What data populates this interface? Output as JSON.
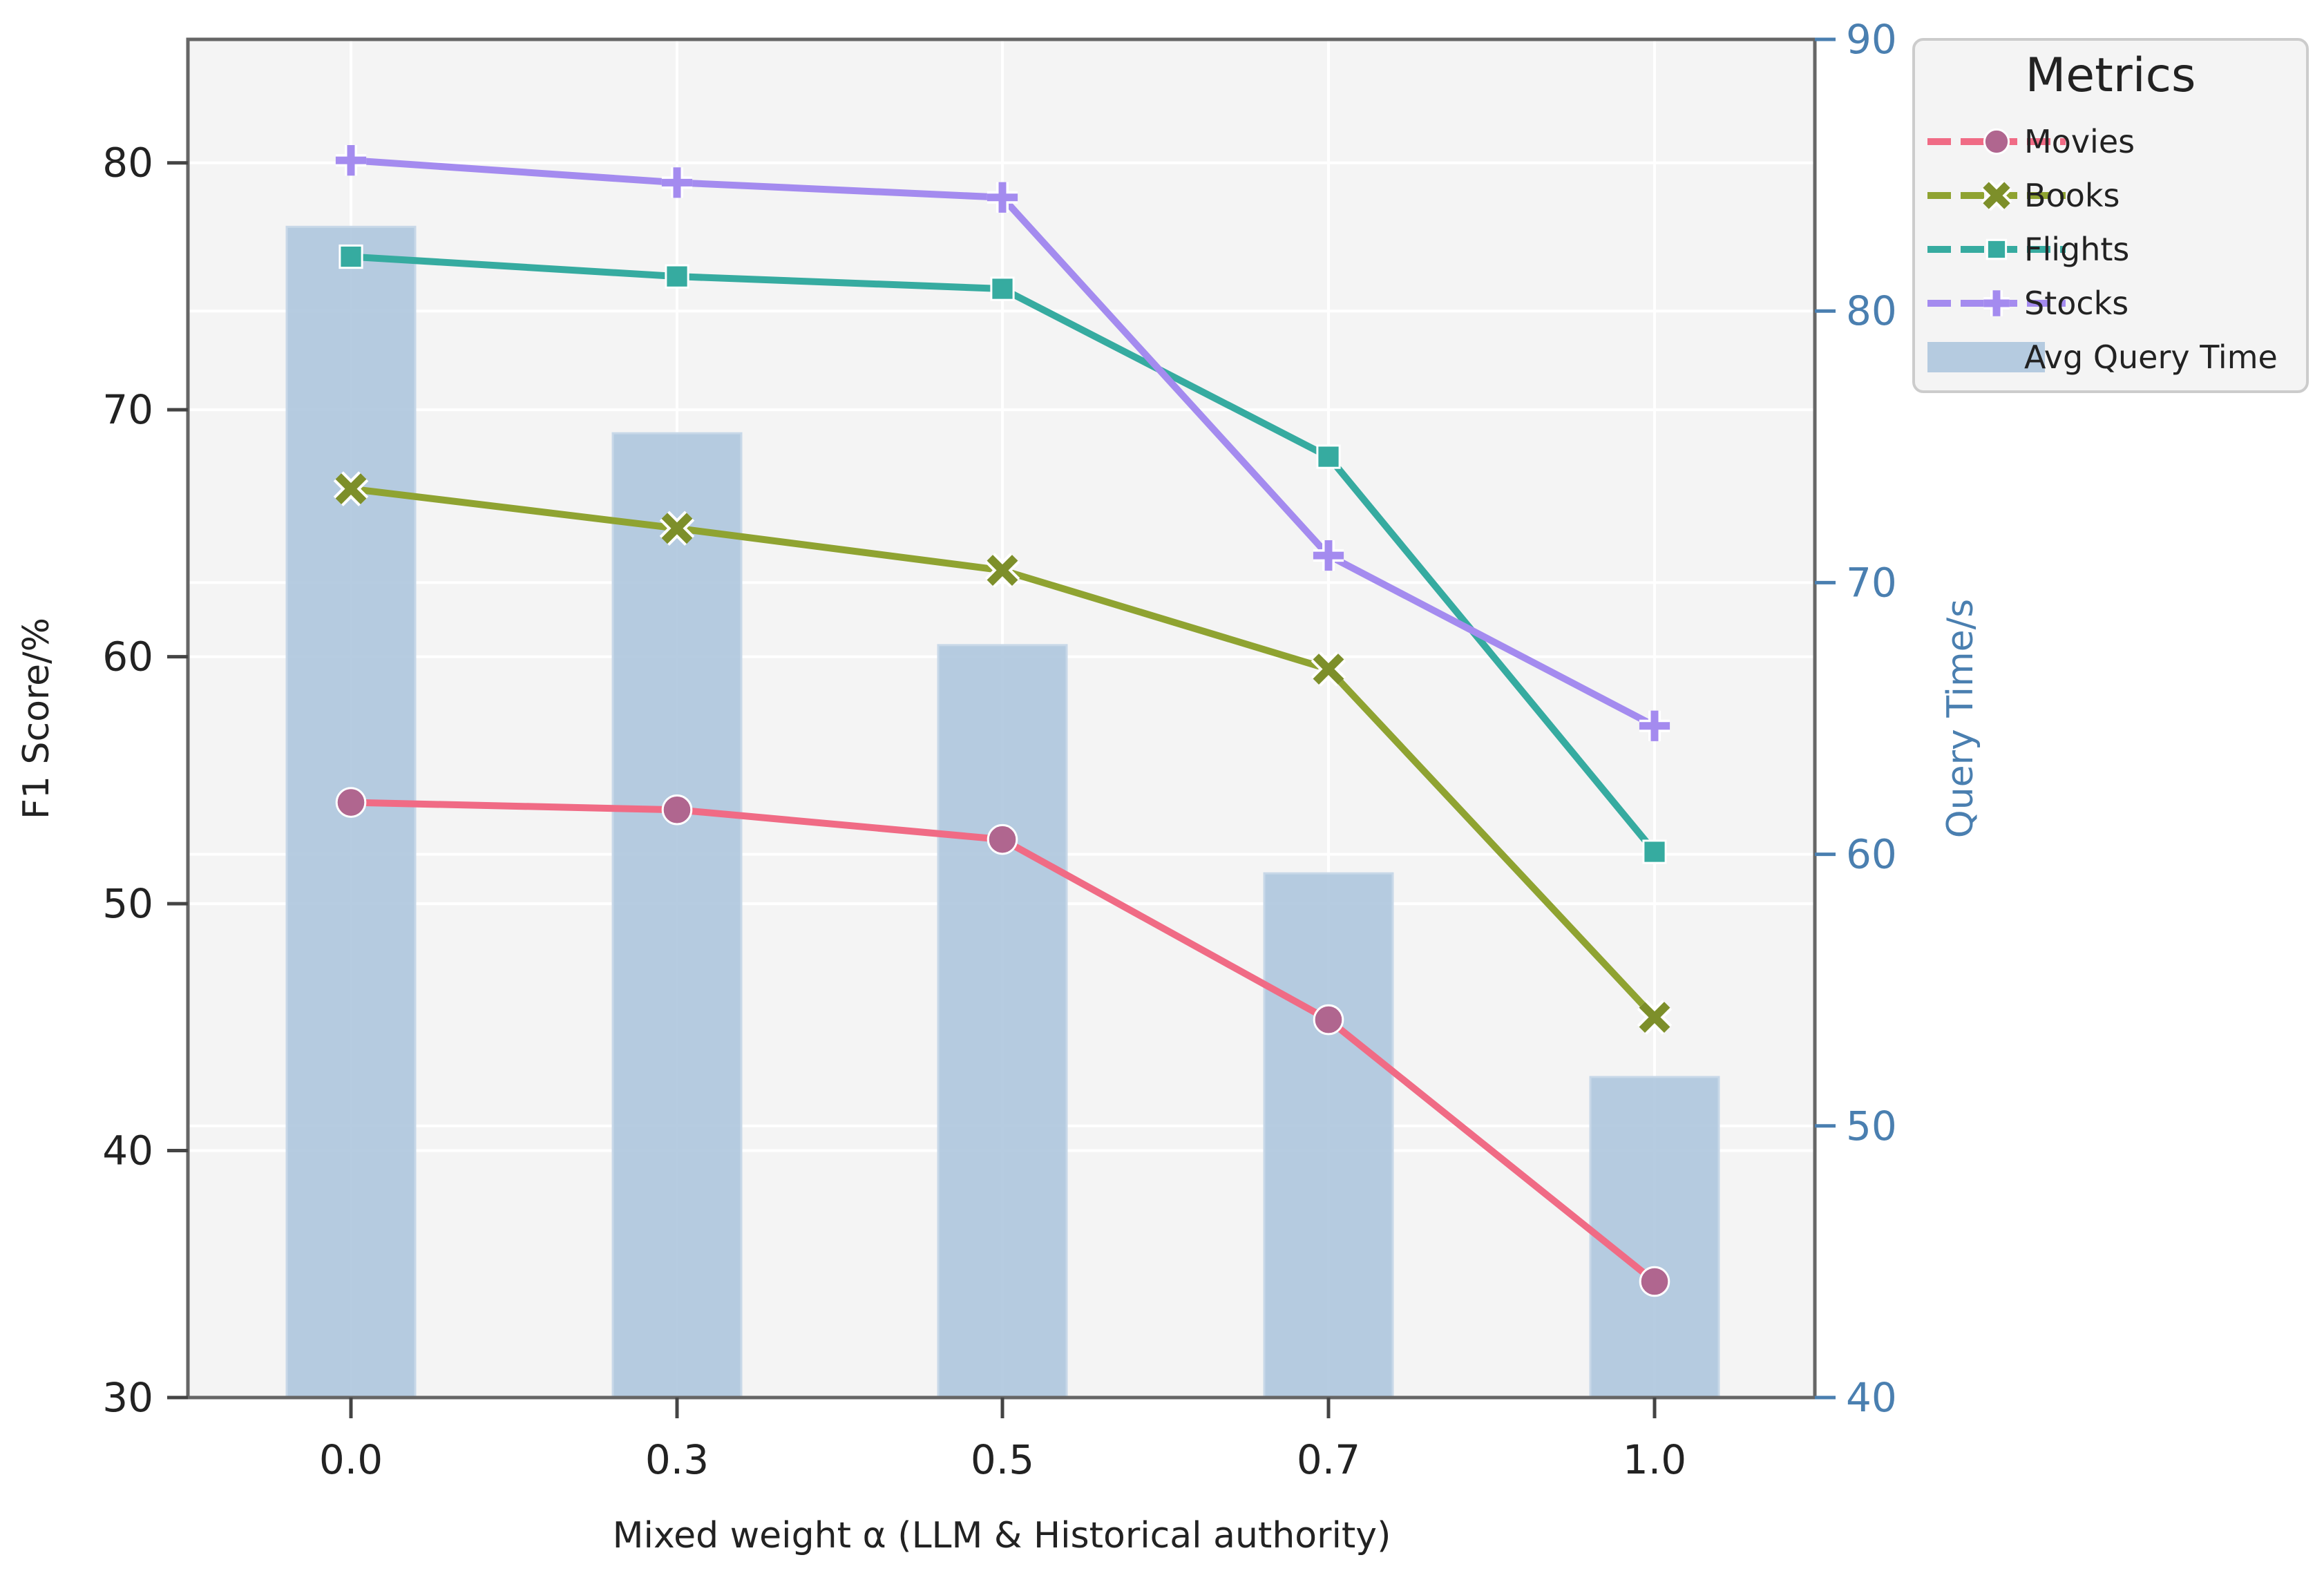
{
  "chart_data": {
    "type": "bar+line",
    "categories": [
      "0.0",
      "0.3",
      "0.5",
      "0.7",
      "1.0"
    ],
    "xlabel": "Mixed weight α (LLM & Historical authority)",
    "ylabel": "F1 Score/%",
    "ylabel_right": "Query Time/s",
    "ylim": [
      30,
      85
    ],
    "ylim_right": [
      40,
      90
    ],
    "yticks": [
      "30",
      "40",
      "50",
      "60",
      "70",
      "80"
    ],
    "yticks_right": [
      "40",
      "50",
      "60",
      "70",
      "80",
      "90"
    ],
    "grid": true,
    "legend_title": "Metrics",
    "legend_position": "outside-top-right",
    "series": [
      {
        "name": "Movies",
        "marker": "circle",
        "color": "#f06b85",
        "values": [
          54.1,
          53.8,
          52.6,
          45.3,
          34.7
        ]
      },
      {
        "name": "Books",
        "marker": "x",
        "color": "#8fa331",
        "values": [
          66.8,
          65.2,
          63.5,
          59.5,
          45.4
        ]
      },
      {
        "name": "Flights",
        "marker": "square",
        "color": "#36aba0",
        "values": [
          76.2,
          75.4,
          74.9,
          68.1,
          52.1
        ]
      },
      {
        "name": "Stocks",
        "marker": "plus",
        "color": "#a48bef",
        "values": [
          80.1,
          79.2,
          78.6,
          64.1,
          57.2
        ]
      }
    ],
    "bars": {
      "name": "Avg Query Time",
      "color": "#a9c3dc",
      "values": [
        83.1,
        75.5,
        67.7,
        59.3,
        51.8
      ]
    }
  }
}
